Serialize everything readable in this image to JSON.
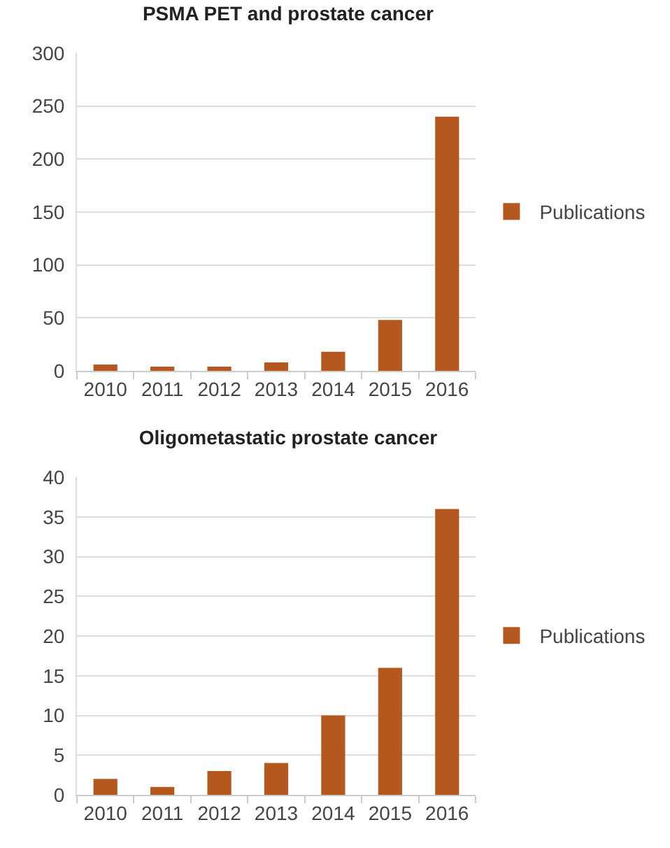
{
  "chart_data": [
    {
      "type": "bar",
      "title": "PSMA PET and prostate cancer",
      "categories": [
        "2010",
        "2011",
        "2012",
        "2013",
        "2014",
        "2015",
        "2016"
      ],
      "series": [
        {
          "name": "Publications",
          "color": "#b5581f",
          "values": [
            6,
            4,
            4,
            8,
            18,
            48,
            240
          ]
        }
      ],
      "ylim": [
        0,
        300
      ],
      "yticks": [
        0,
        50,
        100,
        150,
        200,
        250,
        300
      ],
      "grid": "y",
      "legend": "right"
    },
    {
      "type": "bar",
      "title": "Oligometastatic prostate cancer",
      "categories": [
        "2010",
        "2011",
        "2012",
        "2013",
        "2014",
        "2015",
        "2016"
      ],
      "series": [
        {
          "name": "Publications",
          "color": "#b5581f",
          "values": [
            2,
            1,
            3,
            4,
            10,
            16,
            36
          ]
        }
      ],
      "ylim": [
        0,
        40
      ],
      "yticks": [
        0,
        5,
        10,
        15,
        20,
        25,
        30,
        35,
        40
      ],
      "grid": "y",
      "legend": "right"
    }
  ]
}
